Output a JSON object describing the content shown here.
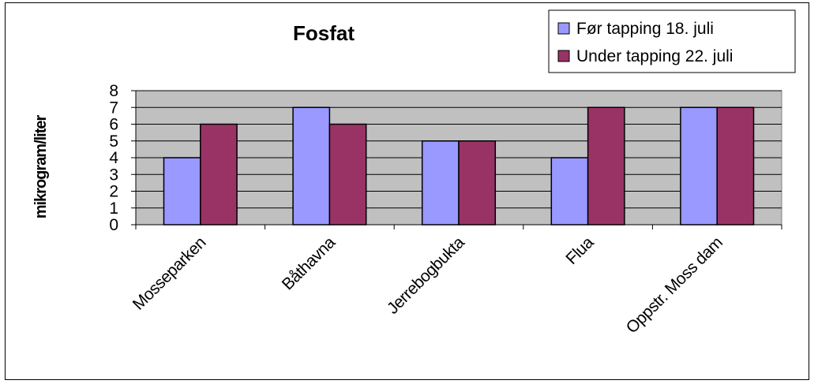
{
  "chart_data": {
    "type": "bar",
    "title": "Fosfat",
    "xlabel": "",
    "ylabel": "mikrogram/liter",
    "ylim": [
      0,
      8
    ],
    "yticks": [
      "0",
      "1",
      "2",
      "3",
      "4",
      "5",
      "6",
      "7",
      "8"
    ],
    "grid": true,
    "legend_position": "top-right",
    "categories": [
      "Mosseparken",
      "Båthavna",
      "Jerrebogbukta",
      "Flua",
      "Oppstr. Moss dam"
    ],
    "series": [
      {
        "name": "Før tapping 18. juli",
        "color": "#9999FF",
        "values": [
          4,
          7,
          5,
          4,
          7
        ]
      },
      {
        "name": "Under tapping 22. juli",
        "color": "#993366",
        "values": [
          6,
          6,
          5,
          7,
          7
        ]
      }
    ],
    "plot_background": "#C0C0C0"
  }
}
